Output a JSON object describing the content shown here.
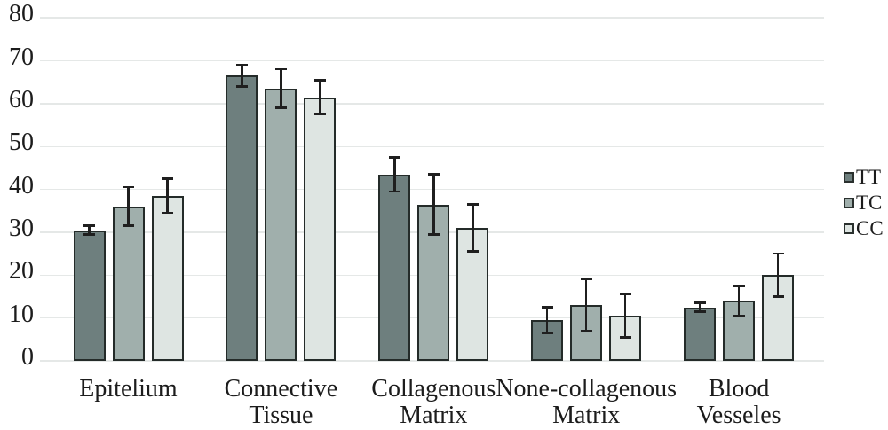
{
  "chart_data": {
    "type": "bar",
    "title": "",
    "xlabel": "",
    "ylabel": "",
    "grid": true,
    "error_bars": true,
    "legend_position": "right",
    "ylim": [
      0,
      80
    ],
    "yticks": [
      0,
      10,
      20,
      30,
      40,
      50,
      60,
      70,
      80
    ],
    "categories": [
      "Epitelium",
      "Connective Tissue",
      "Collagenous Matrix",
      "None-collagenous Matrix",
      "Blood Vesseles"
    ],
    "category_display_lines": [
      [
        "Epitelium"
      ],
      [
        "Connective",
        "Tissue"
      ],
      [
        "Collagenous",
        "Matrix"
      ],
      [
        "None-collagenous",
        "Matrix"
      ],
      [
        "Blood",
        "Vesseles"
      ]
    ],
    "series": [
      {
        "name": "TT",
        "color": "#6E7F7E",
        "values": [
          30.5,
          66.5,
          43.5,
          9.5,
          12.5
        ],
        "errors": [
          1,
          2.5,
          4,
          3,
          1
        ]
      },
      {
        "name": "TC",
        "color": "#A0AFAC",
        "values": [
          36,
          63.5,
          36.5,
          13,
          14
        ],
        "errors": [
          4.5,
          4.5,
          7,
          6,
          3.5
        ]
      },
      {
        "name": "CC",
        "color": "#DEE5E2",
        "values": [
          38.5,
          61.5,
          31,
          10.5,
          20
        ],
        "errors": [
          4,
          4,
          5.5,
          5,
          5
        ]
      }
    ]
  },
  "legend": {
    "items": [
      {
        "label": "TT"
      },
      {
        "label": "TC"
      },
      {
        "label": "CC"
      }
    ]
  },
  "colors": {
    "background": "#FFFFFF",
    "gridline": "#E5E8E7",
    "bar_border": "#242B29",
    "error_bar": "#1F1F1F",
    "text": "#1C1C1C"
  }
}
